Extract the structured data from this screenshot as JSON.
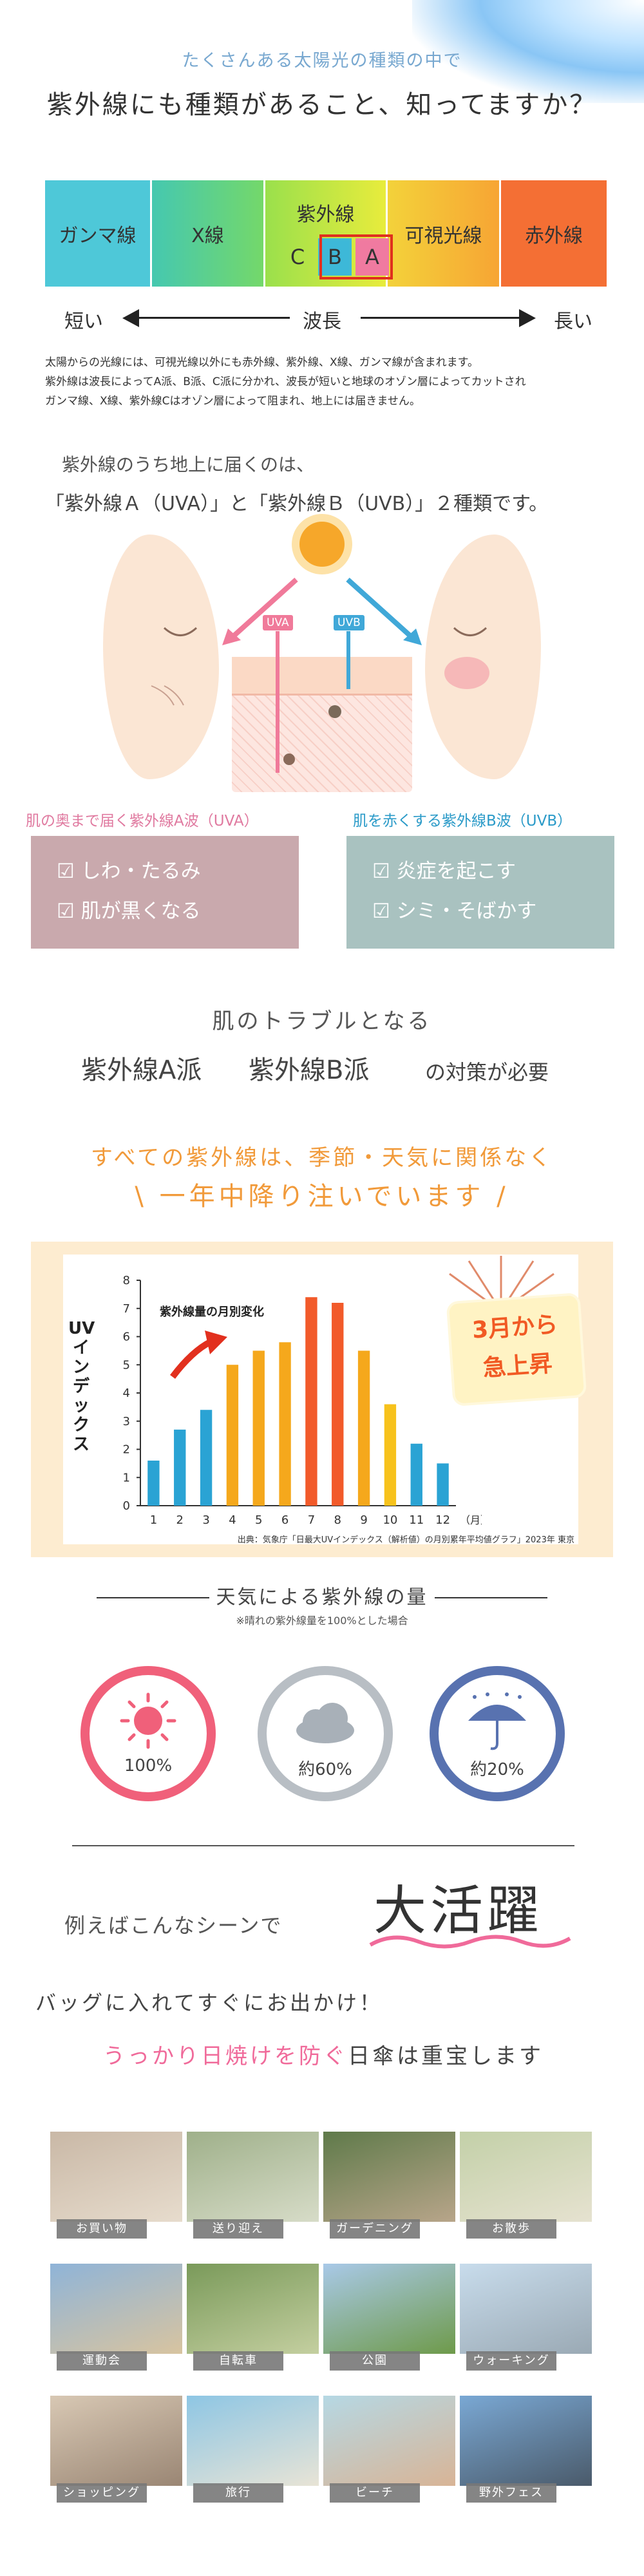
{
  "header": {
    "sub": "たくさんある太陽光の種類の中で",
    "title": "紫外線にも種類があること、知ってますか？"
  },
  "spectrum": {
    "segments": [
      "ガンマ線",
      "X線",
      "紫外線",
      "可視光線",
      "赤外線"
    ],
    "uv_bands": [
      "C",
      "B",
      "A"
    ],
    "short": "短い",
    "wave": "波長",
    "long": "長い"
  },
  "explanation": [
    "太陽からの光線には、可視光線以外にも赤外線、紫外線、X線、ガンマ線が含まれます。",
    "紫外線は波長によってA派、B派、C派に分かれ、波長が短いと地球のオゾン層によってカットされ",
    "ガンマ線、X線、紫外線Cはオゾン層によって阻まれ、地上には届きません。"
  ],
  "reach": {
    "line1": "紫外線のうち地上に届くのは、",
    "line2": "「紫外線Ａ（UVA）」と「紫外線Ｂ（UVB）」２種類です。"
  },
  "illustration": {
    "uva_tag": "UVA",
    "uvb_tag": "UVB"
  },
  "cards": {
    "a_head": "肌の奥まで届く紫外線A波（UVA）",
    "a_items": [
      "しわ・たるみ",
      "肌が黒くなる"
    ],
    "b_head": "肌を赤くする紫外線B波（UVB）",
    "b_items": [
      "炎症を起こす",
      "シミ・そばかす"
    ],
    "check": "☑"
  },
  "trouble": {
    "title": "肌のトラブルとなる",
    "a": "紫外線A派",
    "b": "紫外線B派",
    "suffix": "の対策が必要"
  },
  "allyear": {
    "line1": "すべての紫外線は、季節・天気に関係なく",
    "line2": "一年中降り注いでいます",
    "slash_l": "\\",
    "slash_r": "/"
  },
  "chart_data": {
    "type": "bar",
    "title": "紫外線量の月別変化",
    "ylabel": "UVインデックス",
    "xlabel": "（月）",
    "categories": [
      "1",
      "2",
      "3",
      "4",
      "5",
      "6",
      "7",
      "8",
      "9",
      "10",
      "11",
      "12"
    ],
    "values": [
      1.6,
      2.7,
      3.4,
      5.0,
      5.5,
      5.8,
      7.4,
      7.2,
      5.5,
      3.6,
      2.2,
      1.5
    ],
    "ylim": [
      0,
      8
    ],
    "yticks": [
      "0",
      "1",
      "2",
      "3",
      "4",
      "5",
      "6",
      "7",
      "8"
    ],
    "colors": {
      "blue": "#2aa3d4",
      "orange": "#f5a81c",
      "red": "#f25a2a"
    },
    "badge": [
      "3月から",
      "急上昇"
    ],
    "source": "出典：気象庁「日最大UVインデックス（解析値）の月別累年平均値グラフ」2023年 東京"
  },
  "weather": {
    "title": "天気による紫外線の量",
    "note": "※晴れの紫外線量を100%とした場合",
    "items": [
      {
        "icon": "sun-icon",
        "pct": "100%",
        "color": "#f0607a"
      },
      {
        "icon": "cloud-icon",
        "pct": "約60%",
        "color": "#a8b0b8"
      },
      {
        "icon": "umbrella-icon",
        "pct": "約20%",
        "color": "#5872b0"
      }
    ]
  },
  "scene": {
    "lead": "例えばこんなシーンで",
    "big": "大活躍",
    "line1": "バッグに入れてすぐにお出かけ！",
    "line2_pink": "うっかり日焼けを防ぐ",
    "line2_rest": "日傘は重宝します"
  },
  "photos": [
    {
      "cap": "お買い物",
      "c1": "#c9b8a6",
      "c2": "#e7dccd"
    },
    {
      "cap": "送り迎え",
      "c1": "#9fb08a",
      "c2": "#d7dcc8"
    },
    {
      "cap": "ガーデニング",
      "c1": "#5f7a4a",
      "c2": "#b8a58a"
    },
    {
      "cap": "お散歩",
      "c1": "#c3d0a8",
      "c2": "#e6e2d0"
    },
    {
      "cap": "運動会",
      "c1": "#8fb4d8",
      "c2": "#d8c4a0"
    },
    {
      "cap": "自転車",
      "c1": "#7a9a5a",
      "c2": "#c4cfa0"
    },
    {
      "cap": "公園",
      "c1": "#a9c9e8",
      "c2": "#6e9a4a"
    },
    {
      "cap": "ウォーキング",
      "c1": "#c8dcec",
      "c2": "#9aa9b4"
    },
    {
      "cap": "ショッピング",
      "c1": "#d8c8b4",
      "c2": "#9a8674"
    },
    {
      "cap": "旅行",
      "c1": "#8ec6e4",
      "c2": "#e8e4d6"
    },
    {
      "cap": "ビーチ",
      "c1": "#b6d8e4",
      "c2": "#d8b496"
    },
    {
      "cap": "野外フェス",
      "c1": "#7aa8d4",
      "c2": "#4a5a6a"
    }
  ]
}
